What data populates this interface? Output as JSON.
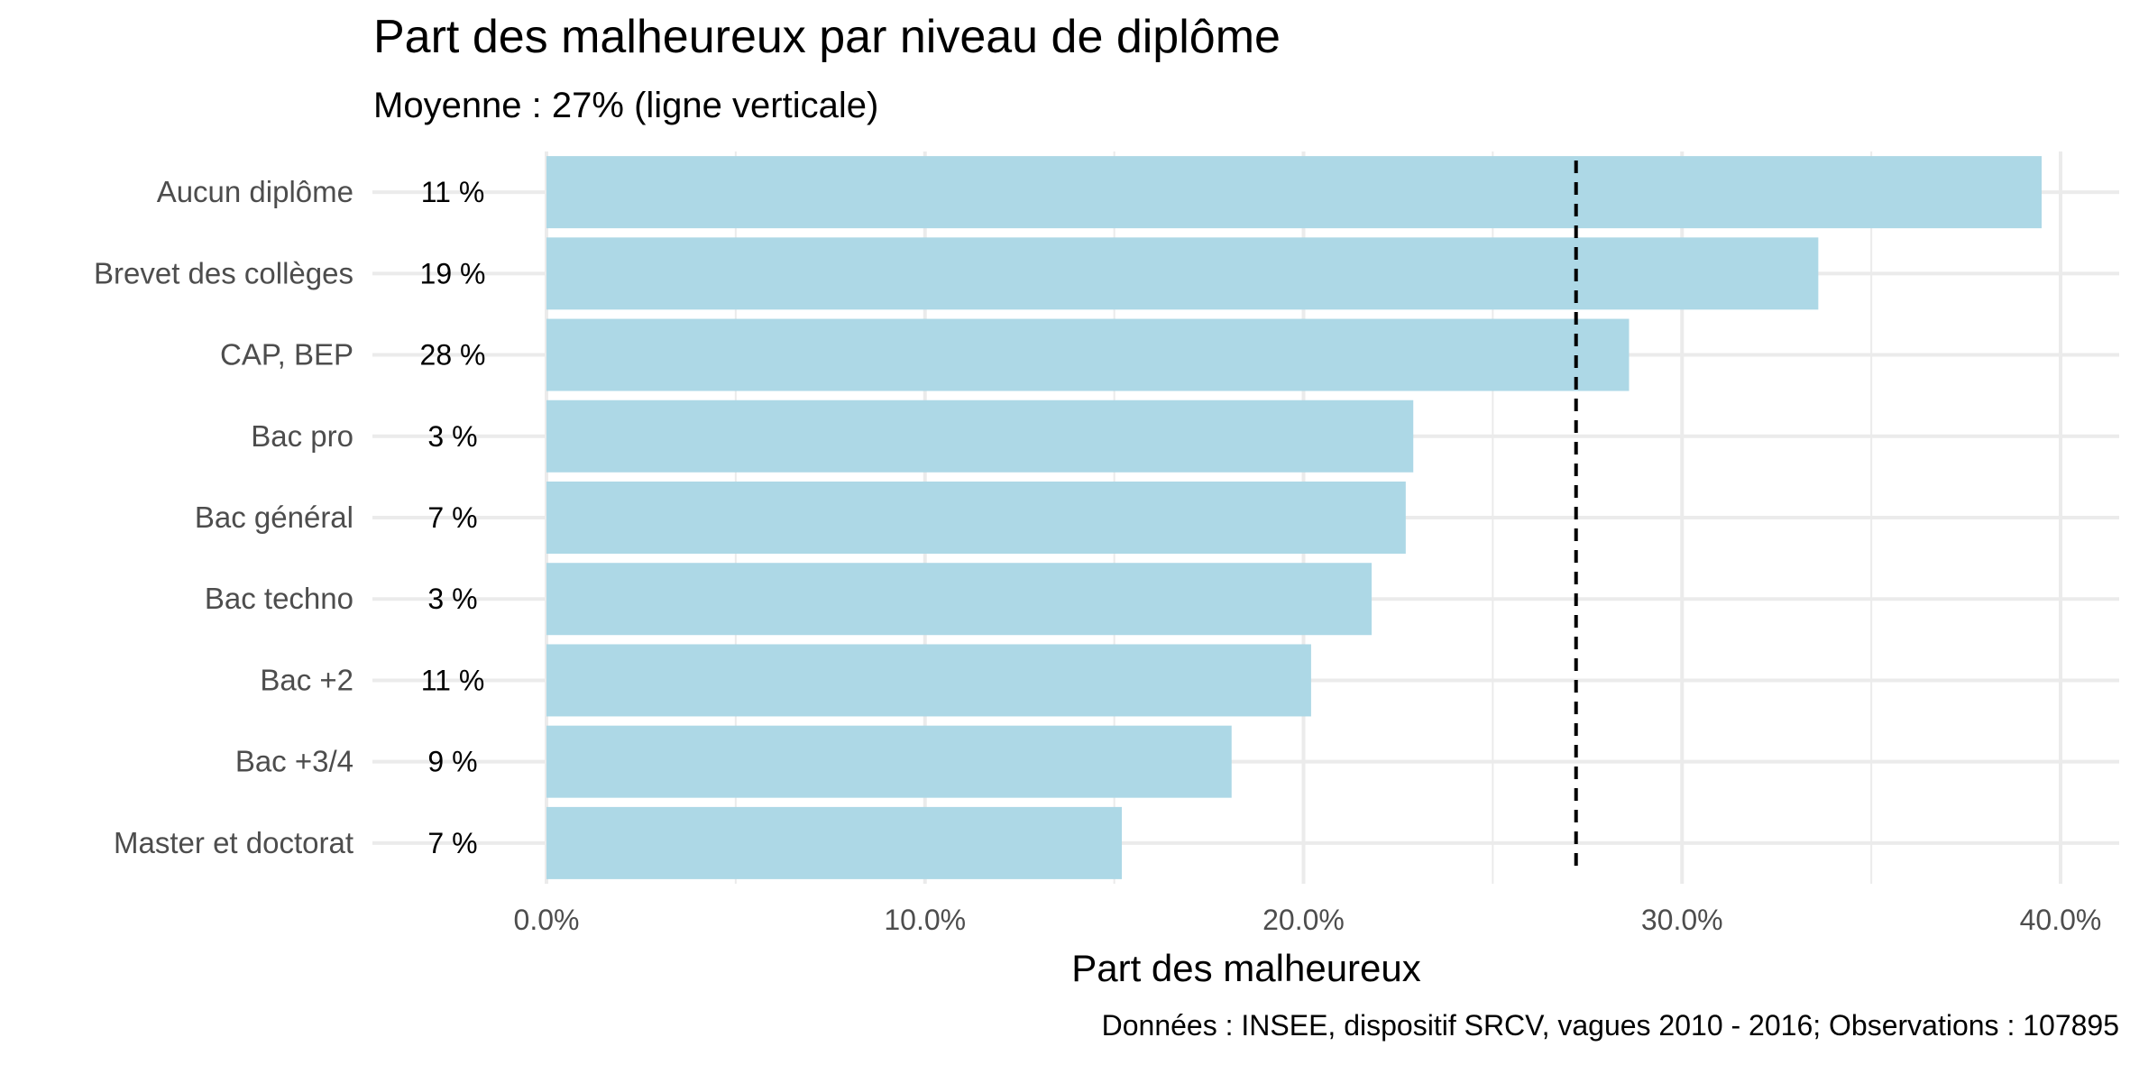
{
  "chart_data": {
    "type": "bar",
    "orientation": "horizontal",
    "title": "Part des malheureux par niveau de diplôme",
    "subtitle": "Moyenne : 27% (ligne verticale)",
    "xlabel": "Part des malheureux",
    "ylabel": "",
    "caption": "Données : INSEE, dispositif SRCV, vagues 2010 - 2016; Observations : 107895",
    "categories": [
      "Aucun diplôme",
      "Brevet des collèges",
      "CAP, BEP",
      "Bac pro",
      "Bac général",
      "Bac techno",
      "Bac +2",
      "Bac +3/4",
      "Master et doctorat"
    ],
    "values": [
      39.5,
      33.6,
      28.6,
      22.9,
      22.7,
      21.8,
      20.2,
      18.1,
      15.2
    ],
    "count_labels": [
      "11 %",
      "19 %",
      "28 %",
      "3 %",
      "7 %",
      "3 %",
      "11 %",
      "9 %",
      "7 %"
    ],
    "mean_line": 27.2,
    "xlim": [
      0,
      40.5
    ],
    "xticks": [
      0,
      10,
      20,
      30,
      40
    ],
    "xtick_labels": [
      "0.0%",
      "10.0%",
      "20.0%",
      "30.0%",
      "40.0%"
    ],
    "grid": true,
    "colors": {
      "bar": "#add8e6",
      "mean_line": "#000000",
      "grid": "#ebebeb"
    }
  }
}
